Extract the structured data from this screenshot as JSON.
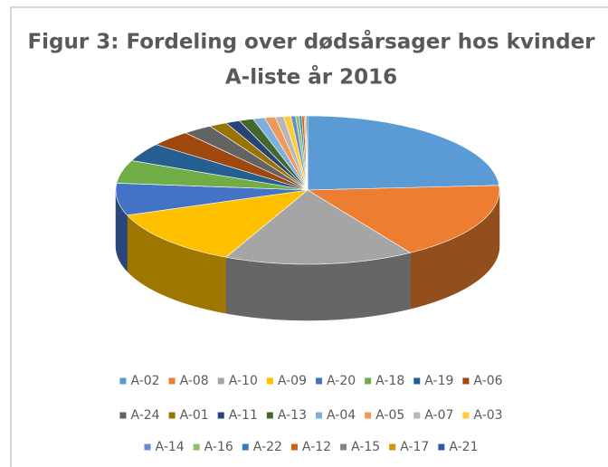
{
  "chart_data": {
    "type": "pie3d",
    "title": [
      "Figur 3: Fordeling over dødsårsager hos kvinder",
      "A-liste år 2016"
    ],
    "categories": [
      "A-02",
      "A-08",
      "A-10",
      "A-09",
      "A-20",
      "A-18",
      "A-19",
      "A-06",
      "A-24",
      "A-01",
      "A-11",
      "A-13",
      "A-04",
      "A-05",
      "A-07",
      "A-03",
      "A-14",
      "A-16",
      "A-22",
      "A-12",
      "A-15",
      "A-17",
      "A-21"
    ],
    "values": [
      24,
      17,
      16,
      12.5,
      7,
      5,
      4,
      3.5,
      2.5,
      1.5,
      1.2,
      1.2,
      1,
      0.9,
      0.7,
      0.6,
      0.4,
      0.3,
      0.2,
      0.2,
      0.1,
      0.1,
      0.1
    ],
    "colors": [
      "#5B9BD5",
      "#ED7D31",
      "#A5A5A5",
      "#FFC000",
      "#4472C4",
      "#70AD47",
      "#255E91",
      "#9E480E",
      "#636363",
      "#997300",
      "#264478",
      "#43682B",
      "#7CAFDD",
      "#F1975A",
      "#B7B7B7",
      "#FFCD33",
      "#698ED0",
      "#8CC168",
      "#327DC2",
      "#D26012",
      "#848484",
      "#CC9A00",
      "#335AA1"
    ],
    "legend": "bottom"
  }
}
